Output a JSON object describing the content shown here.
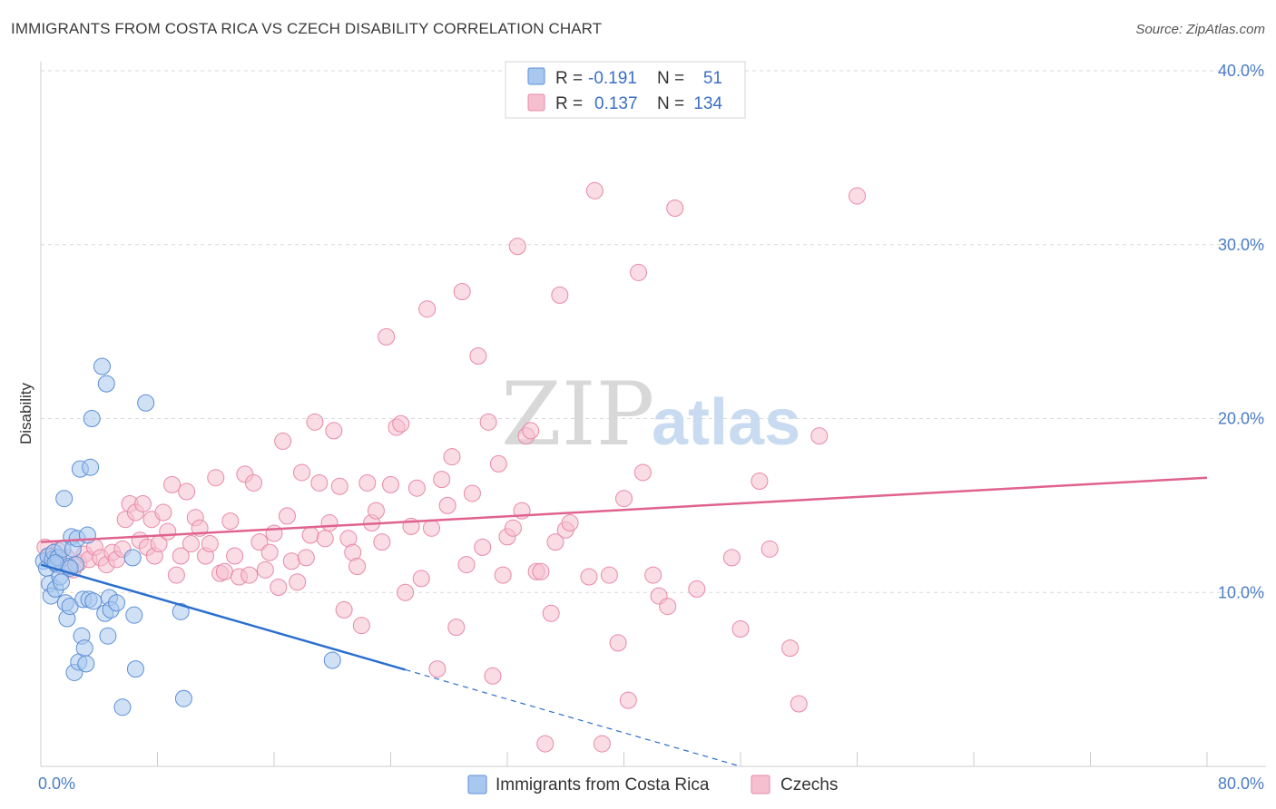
{
  "title": "IMMIGRANTS FROM COSTA RICA VS CZECH DISABILITY CORRELATION CHART",
  "source": "Source: ZipAtlas.com",
  "watermark": {
    "zip": "ZIP",
    "atlas": "atlas"
  },
  "colors": {
    "blue_fill": "#a9c8ef",
    "blue_stroke": "#5b8fd6",
    "blue_line": "#2b6fce",
    "pink_fill": "#f6bfd0",
    "pink_stroke": "#e889a8",
    "pink_line": "#e0628e",
    "grid": "#d9d9d9",
    "axis_text": "#4a7cc7"
  },
  "legend": {
    "rows": [
      {
        "r_label": "R =",
        "r_value": "-0.191",
        "n_label": "N =",
        "n_value": "51",
        "series": "blue"
      },
      {
        "r_label": "R =",
        "r_value": "0.137",
        "n_label": "N =",
        "n_value": "134",
        "series": "pink"
      }
    ]
  },
  "chart_data": {
    "type": "scatter",
    "title": "IMMIGRANTS FROM COSTA RICA VS CZECH DISABILITY CORRELATION CHART",
    "xlabel": "",
    "ylabel": "Disability",
    "xlim": [
      0,
      80
    ],
    "ylim": [
      0,
      40
    ],
    "x_ticks": [
      {
        "value": 0,
        "label": "0.0%"
      },
      {
        "value": 80,
        "label": "80.0%"
      }
    ],
    "y_ticks": [
      {
        "value": 10,
        "label": "10.0%"
      },
      {
        "value": 20,
        "label": "20.0%"
      },
      {
        "value": 30,
        "label": "30.0%"
      },
      {
        "value": 40,
        "label": "40.0%"
      }
    ],
    "grid": true,
    "legend_position": "top-center",
    "series": [
      {
        "name": "Immigrants from Costa Rica",
        "color": "blue",
        "r": -0.191,
        "n": 51,
        "trend": {
          "x_start": 0,
          "y_start": 11.6,
          "x_solid_end": 25,
          "x_end": 48,
          "y_end": 0
        },
        "points": [
          [
            0.2,
            11.8
          ],
          [
            0.4,
            11.4
          ],
          [
            0.5,
            12.1
          ],
          [
            0.6,
            10.5
          ],
          [
            0.7,
            9.8
          ],
          [
            0.8,
            11.9
          ],
          [
            0.9,
            12.3
          ],
          [
            1.0,
            10.2
          ],
          [
            1.1,
            11.6
          ],
          [
            1.2,
            12.0
          ],
          [
            1.3,
            10.9
          ],
          [
            1.4,
            10.6
          ],
          [
            1.5,
            12.5
          ],
          [
            1.6,
            15.4
          ],
          [
            1.7,
            9.4
          ],
          [
            1.8,
            8.5
          ],
          [
            1.9,
            11.5
          ],
          [
            2.0,
            9.2
          ],
          [
            2.1,
            13.2
          ],
          [
            2.2,
            12.5
          ],
          [
            2.3,
            5.4
          ],
          [
            2.4,
            11.6
          ],
          [
            2.5,
            13.1
          ],
          [
            2.6,
            6.0
          ],
          [
            2.7,
            17.1
          ],
          [
            2.8,
            7.5
          ],
          [
            2.9,
            9.6
          ],
          [
            3.0,
            6.8
          ],
          [
            3.1,
            5.9
          ],
          [
            3.2,
            13.3
          ],
          [
            3.3,
            9.6
          ],
          [
            3.4,
            17.2
          ],
          [
            3.5,
            20.0
          ],
          [
            3.6,
            9.5
          ],
          [
            4.2,
            23.0
          ],
          [
            4.4,
            8.8
          ],
          [
            4.5,
            22.0
          ],
          [
            4.6,
            7.5
          ],
          [
            4.7,
            9.7
          ],
          [
            4.8,
            9.0
          ],
          [
            5.2,
            9.4
          ],
          [
            5.6,
            3.4
          ],
          [
            6.3,
            12.0
          ],
          [
            6.4,
            8.7
          ],
          [
            6.5,
            5.6
          ],
          [
            7.2,
            20.9
          ],
          [
            9.6,
            8.9
          ],
          [
            9.8,
            3.9
          ],
          [
            20.0,
            6.1
          ],
          [
            1.0,
            11.7
          ],
          [
            2.0,
            11.4
          ]
        ]
      },
      {
        "name": "Czechs",
        "color": "pink",
        "r": 0.137,
        "n": 134,
        "trend": {
          "x_start": 0,
          "y_start": 12.9,
          "x_end": 80,
          "y_end": 16.6
        },
        "points": [
          [
            0.3,
            12.6
          ],
          [
            0.6,
            12.1
          ],
          [
            0.9,
            11.8
          ],
          [
            1.2,
            12.4
          ],
          [
            1.5,
            11.5
          ],
          [
            1.8,
            12.0
          ],
          [
            2.2,
            11.3
          ],
          [
            2.6,
            11.7
          ],
          [
            3.0,
            12.2
          ],
          [
            3.3,
            11.9
          ],
          [
            3.7,
            12.6
          ],
          [
            4.1,
            12.0
          ],
          [
            4.5,
            11.6
          ],
          [
            4.9,
            12.3
          ],
          [
            5.2,
            11.9
          ],
          [
            5.6,
            12.5
          ],
          [
            5.8,
            14.2
          ],
          [
            6.1,
            15.1
          ],
          [
            6.5,
            14.6
          ],
          [
            6.8,
            13.0
          ],
          [
            7.0,
            15.1
          ],
          [
            7.3,
            12.6
          ],
          [
            7.6,
            14.2
          ],
          [
            7.8,
            12.1
          ],
          [
            8.1,
            12.8
          ],
          [
            8.4,
            14.6
          ],
          [
            8.7,
            13.5
          ],
          [
            9.0,
            16.2
          ],
          [
            9.3,
            11.0
          ],
          [
            9.6,
            12.1
          ],
          [
            10.0,
            15.8
          ],
          [
            10.3,
            12.8
          ],
          [
            10.6,
            14.3
          ],
          [
            10.9,
            13.7
          ],
          [
            11.3,
            12.1
          ],
          [
            11.6,
            12.8
          ],
          [
            12.0,
            16.6
          ],
          [
            12.3,
            11.1
          ],
          [
            12.6,
            11.2
          ],
          [
            13.0,
            14.1
          ],
          [
            13.3,
            12.1
          ],
          [
            13.6,
            10.9
          ],
          [
            14.0,
            16.8
          ],
          [
            14.3,
            11.0
          ],
          [
            14.6,
            16.3
          ],
          [
            15.0,
            12.9
          ],
          [
            15.4,
            11.3
          ],
          [
            15.7,
            12.3
          ],
          [
            16.0,
            13.4
          ],
          [
            16.3,
            10.3
          ],
          [
            16.6,
            18.7
          ],
          [
            16.9,
            14.4
          ],
          [
            17.2,
            11.8
          ],
          [
            17.6,
            10.6
          ],
          [
            17.9,
            16.9
          ],
          [
            18.2,
            12.0
          ],
          [
            18.5,
            13.3
          ],
          [
            18.8,
            19.8
          ],
          [
            19.1,
            16.3
          ],
          [
            19.5,
            13.1
          ],
          [
            19.8,
            14.0
          ],
          [
            20.1,
            19.3
          ],
          [
            20.5,
            16.1
          ],
          [
            20.8,
            9.0
          ],
          [
            21.1,
            13.1
          ],
          [
            21.4,
            12.3
          ],
          [
            21.7,
            11.5
          ],
          [
            22.0,
            8.1
          ],
          [
            22.4,
            16.3
          ],
          [
            22.7,
            14.0
          ],
          [
            23.0,
            14.7
          ],
          [
            23.4,
            12.9
          ],
          [
            23.7,
            24.7
          ],
          [
            24.0,
            16.2
          ],
          [
            24.4,
            19.5
          ],
          [
            24.7,
            19.7
          ],
          [
            25.0,
            10.0
          ],
          [
            25.4,
            13.8
          ],
          [
            25.8,
            16.0
          ],
          [
            26.1,
            10.8
          ],
          [
            26.5,
            26.3
          ],
          [
            26.8,
            13.7
          ],
          [
            27.2,
            5.6
          ],
          [
            27.5,
            16.5
          ],
          [
            27.9,
            15.0
          ],
          [
            28.2,
            17.8
          ],
          [
            28.5,
            8.0
          ],
          [
            28.9,
            27.3
          ],
          [
            29.2,
            11.6
          ],
          [
            29.6,
            15.7
          ],
          [
            30.0,
            23.6
          ],
          [
            30.3,
            12.6
          ],
          [
            30.7,
            19.8
          ],
          [
            31.0,
            5.2
          ],
          [
            31.4,
            17.4
          ],
          [
            31.7,
            11.0
          ],
          [
            32.0,
            13.2
          ],
          [
            32.4,
            13.7
          ],
          [
            32.7,
            29.9
          ],
          [
            33.0,
            14.7
          ],
          [
            33.3,
            19.0
          ],
          [
            33.6,
            19.3
          ],
          [
            34.0,
            11.2
          ],
          [
            34.3,
            11.2
          ],
          [
            34.6,
            1.3
          ],
          [
            35.0,
            8.8
          ],
          [
            35.3,
            12.9
          ],
          [
            35.6,
            27.1
          ],
          [
            36.0,
            13.6
          ],
          [
            36.3,
            14.0
          ],
          [
            37.6,
            10.9
          ],
          [
            38.0,
            33.1
          ],
          [
            39.0,
            11.0
          ],
          [
            39.6,
            7.1
          ],
          [
            40.0,
            15.4
          ],
          [
            40.3,
            3.8
          ],
          [
            41.0,
            28.4
          ],
          [
            41.3,
            16.9
          ],
          [
            42.0,
            11.0
          ],
          [
            42.4,
            9.8
          ],
          [
            43.0,
            9.2
          ],
          [
            43.5,
            32.1
          ],
          [
            45.0,
            10.2
          ],
          [
            47.4,
            12.0
          ],
          [
            48.0,
            7.9
          ],
          [
            49.3,
            16.4
          ],
          [
            50.0,
            12.5
          ],
          [
            51.4,
            6.8
          ],
          [
            52.0,
            3.6
          ],
          [
            53.4,
            19.0
          ],
          [
            56.0,
            32.8
          ],
          [
            38.5,
            1.3
          ]
        ]
      }
    ]
  },
  "bottom_legend": [
    {
      "label": "Immigrants from Costa Rica",
      "series": "blue"
    },
    {
      "label": "Czechs",
      "series": "pink"
    }
  ]
}
